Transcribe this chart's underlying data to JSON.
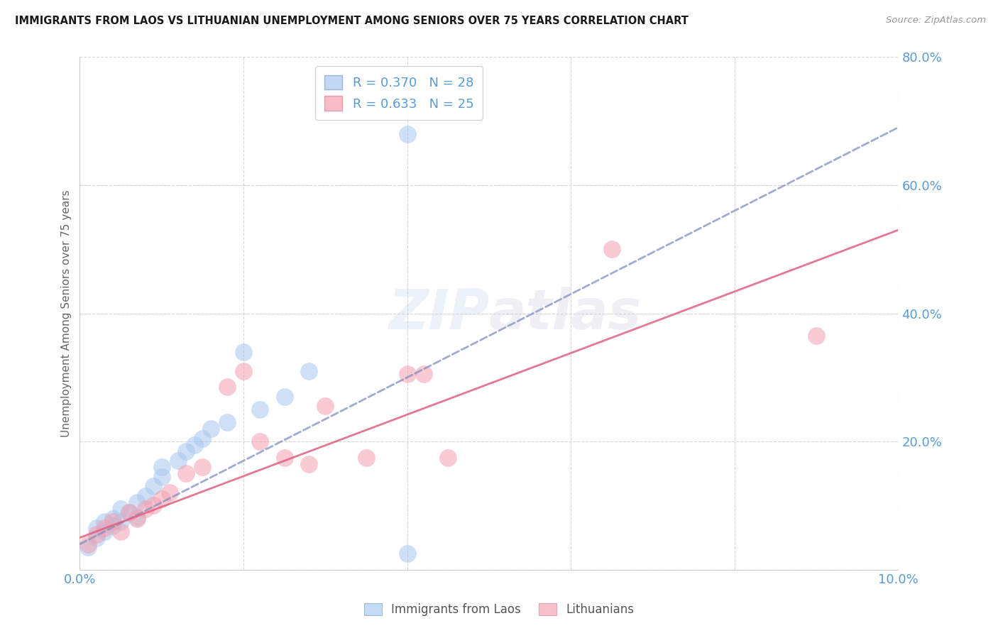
{
  "title": "IMMIGRANTS FROM LAOS VS LITHUANIAN UNEMPLOYMENT AMONG SENIORS OVER 75 YEARS CORRELATION CHART",
  "source": "Source: ZipAtlas.com",
  "ylabel": "Unemployment Among Seniors over 75 years",
  "xlim": [
    0.0,
    0.1
  ],
  "ylim": [
    0.0,
    0.8
  ],
  "xticks": [
    0.0,
    0.02,
    0.04,
    0.06,
    0.08,
    0.1
  ],
  "yticks": [
    0.0,
    0.2,
    0.4,
    0.6,
    0.8
  ],
  "xtick_labels": [
    "0.0%",
    "",
    "",
    "",
    "",
    "10.0%"
  ],
  "ytick_labels": [
    "",
    "20.0%",
    "40.0%",
    "60.0%",
    "80.0%"
  ],
  "legend_labels": [
    "Immigrants from Laos",
    "Lithuanians"
  ],
  "R_laos": 0.37,
  "N_laos": 28,
  "R_lith": 0.633,
  "N_lith": 25,
  "blue_color": "#A8C8F0",
  "pink_color": "#F4A0B0",
  "blue_line_color": "#8090C0",
  "pink_line_color": "#E06080",
  "axis_color": "#5B9BD5",
  "grid_color": "#CCCCCC",
  "watermark_color": "#C8D8F0",
  "blue_x": [
    0.001,
    0.002,
    0.002,
    0.003,
    0.003,
    0.004,
    0.004,
    0.005,
    0.005,
    0.006,
    0.007,
    0.007,
    0.008,
    0.009,
    0.01,
    0.01,
    0.012,
    0.013,
    0.014,
    0.015,
    0.016,
    0.018,
    0.02,
    0.022,
    0.025,
    0.028,
    0.04,
    0.04
  ],
  "blue_y": [
    0.035,
    0.05,
    0.065,
    0.075,
    0.06,
    0.08,
    0.068,
    0.095,
    0.075,
    0.09,
    0.105,
    0.082,
    0.115,
    0.13,
    0.145,
    0.16,
    0.17,
    0.185,
    0.195,
    0.205,
    0.22,
    0.23,
    0.34,
    0.25,
    0.27,
    0.31,
    0.025,
    0.68
  ],
  "pink_x": [
    0.001,
    0.002,
    0.003,
    0.004,
    0.005,
    0.006,
    0.007,
    0.008,
    0.009,
    0.01,
    0.011,
    0.013,
    0.015,
    0.018,
    0.02,
    0.022,
    0.025,
    0.028,
    0.03,
    0.035,
    0.04,
    0.042,
    0.045,
    0.065,
    0.09
  ],
  "pink_y": [
    0.04,
    0.055,
    0.065,
    0.075,
    0.06,
    0.09,
    0.08,
    0.095,
    0.1,
    0.11,
    0.12,
    0.15,
    0.16,
    0.285,
    0.31,
    0.2,
    0.175,
    0.165,
    0.255,
    0.175,
    0.305,
    0.305,
    0.175,
    0.5,
    0.365
  ],
  "blue_slope": 6.5,
  "blue_intercept": 0.04,
  "pink_slope": 4.8,
  "pink_intercept": 0.05
}
